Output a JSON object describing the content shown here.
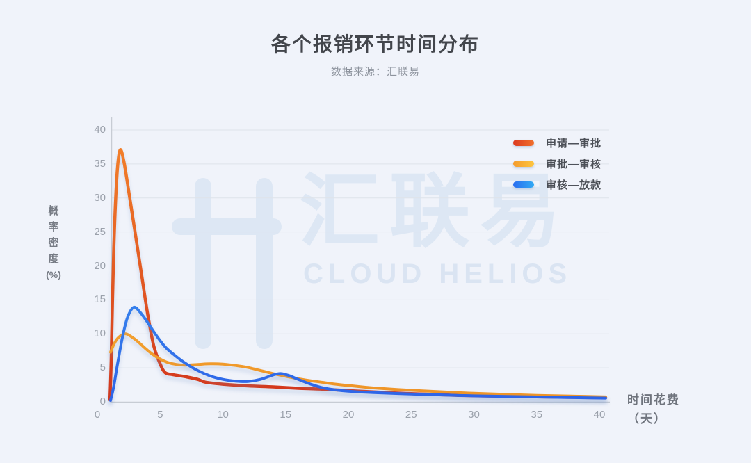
{
  "header": {
    "title": "各个报销环节时间分布",
    "subtitle": "数据来源：汇联易"
  },
  "watermark": {
    "brand": "汇联易",
    "brand_en": "CLOUD HELIOS"
  },
  "colors": {
    "background": "#f0f3fa",
    "gridline": "#dee3ea",
    "axis_line": "#c7ccd4",
    "tick_text": "#9ba1ab",
    "title_text": "#43464c",
    "subtitle_text": "#8d939d",
    "legend_text": "#4b4f56",
    "watermark": "#dde7f4"
  },
  "chart_data": {
    "type": "line",
    "title": "各个报销环节时间分布",
    "xlabel": "时间花费（天）",
    "ylabel": "概率密度(%)",
    "grid": true,
    "legend_position": "top-right-vertical",
    "x_axis": {
      "ticks": [
        0,
        5,
        10,
        15,
        20,
        25,
        30,
        35,
        40
      ],
      "range": [
        0,
        40.8
      ]
    },
    "y_axis": {
      "ticks": [
        0,
        5,
        10,
        15,
        20,
        25,
        30,
        35,
        40
      ],
      "range": [
        0,
        40
      ]
    },
    "axis_titles": {
      "y_chars": "概率密度",
      "y_unit": "(%)",
      "x_line1": "时间花费",
      "x_line2": "（天）"
    },
    "series": [
      {
        "name": "申请—审批",
        "stroke_top": "#f6872b",
        "stroke_bottom": "#d2351c",
        "legend_colors": [
          "#dc3a20",
          "#f0702c"
        ],
        "width": 4.5,
        "points": [
          [
            1.0,
            0.3
          ],
          [
            1.1,
            6
          ],
          [
            1.3,
            22
          ],
          [
            1.55,
            33
          ],
          [
            1.8,
            37
          ],
          [
            2.1,
            35.5
          ],
          [
            2.5,
            31
          ],
          [
            3,
            25
          ],
          [
            3.5,
            19
          ],
          [
            4,
            13
          ],
          [
            4.5,
            8.2
          ],
          [
            5,
            5.6
          ],
          [
            5.4,
            4.3
          ],
          [
            6,
            4.0
          ],
          [
            7,
            3.7
          ],
          [
            8,
            3.3
          ],
          [
            8.6,
            2.9
          ],
          [
            10,
            2.6
          ],
          [
            12,
            2.35
          ],
          [
            14,
            2.2
          ],
          [
            16,
            2.0
          ],
          [
            18,
            1.85
          ],
          [
            20,
            1.65
          ],
          [
            22,
            1.45
          ],
          [
            25,
            1.2
          ],
          [
            28,
            1.0
          ],
          [
            30,
            0.9
          ],
          [
            35,
            0.75
          ],
          [
            38,
            0.66
          ],
          [
            40.5,
            0.6
          ]
        ]
      },
      {
        "name": "审批—审核",
        "stroke_top": "#ffc846",
        "stroke_bottom": "#ee9327",
        "legend_colors": [
          "#f49b2d",
          "#fdc63f"
        ],
        "width": 4,
        "points": [
          [
            1.05,
            7.3
          ],
          [
            1.3,
            8.4
          ],
          [
            1.6,
            9.3
          ],
          [
            2.0,
            9.9
          ],
          [
            2.3,
            10.0
          ],
          [
            2.7,
            9.6
          ],
          [
            3.2,
            8.9
          ],
          [
            3.8,
            7.9
          ],
          [
            4.4,
            7.0
          ],
          [
            5,
            6.3
          ],
          [
            5.6,
            5.8
          ],
          [
            6.3,
            5.5
          ],
          [
            7,
            5.4
          ],
          [
            8,
            5.5
          ],
          [
            9,
            5.6
          ],
          [
            10,
            5.55
          ],
          [
            11,
            5.35
          ],
          [
            12,
            5.05
          ],
          [
            13,
            4.6
          ],
          [
            14,
            4.15
          ],
          [
            15,
            3.75
          ],
          [
            16,
            3.4
          ],
          [
            17,
            3.1
          ],
          [
            18,
            2.85
          ],
          [
            19,
            2.6
          ],
          [
            20,
            2.4
          ],
          [
            22,
            2.05
          ],
          [
            25,
            1.7
          ],
          [
            28,
            1.42
          ],
          [
            30,
            1.25
          ],
          [
            35,
            0.95
          ],
          [
            38,
            0.83
          ],
          [
            40.5,
            0.73
          ]
        ]
      },
      {
        "name": "审核—放款",
        "stroke_top": "#47b8f4",
        "stroke_bottom": "#2d63e8",
        "legend_colors": [
          "#2a6ef0",
          "#31aaf4"
        ],
        "width": 4,
        "points": [
          [
            1.05,
            0.2
          ],
          [
            1.3,
            2.2
          ],
          [
            1.6,
            5.5
          ],
          [
            2.0,
            9.5
          ],
          [
            2.4,
            12.4
          ],
          [
            2.9,
            13.9
          ],
          [
            3.4,
            13.2
          ],
          [
            4,
            11.7
          ],
          [
            4.5,
            10.3
          ],
          [
            5,
            9.0
          ],
          [
            5.5,
            7.9
          ],
          [
            6.2,
            6.8
          ],
          [
            7,
            5.7
          ],
          [
            8,
            4.6
          ],
          [
            9,
            3.8
          ],
          [
            10,
            3.3
          ],
          [
            11,
            3.05
          ],
          [
            12,
            3.0
          ],
          [
            13,
            3.3
          ],
          [
            14,
            3.95
          ],
          [
            14.6,
            4.15
          ],
          [
            15.3,
            3.85
          ],
          [
            16,
            3.3
          ],
          [
            17,
            2.6
          ],
          [
            18,
            2.05
          ],
          [
            19,
            1.75
          ],
          [
            20,
            1.55
          ],
          [
            22,
            1.35
          ],
          [
            25,
            1.15
          ],
          [
            28,
            0.98
          ],
          [
            30,
            0.88
          ],
          [
            35,
            0.72
          ],
          [
            38,
            0.62
          ],
          [
            40.5,
            0.55
          ]
        ]
      }
    ]
  }
}
